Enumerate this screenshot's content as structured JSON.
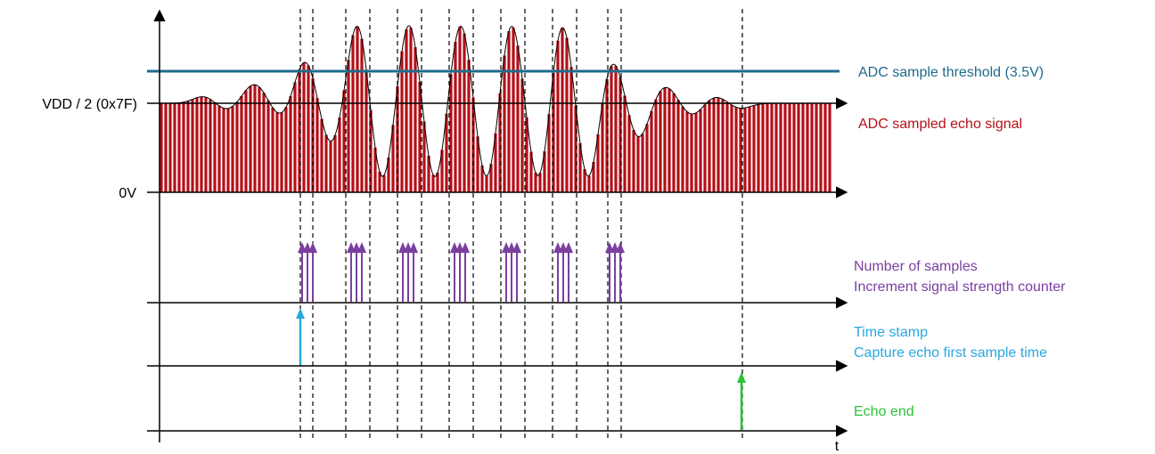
{
  "labels": {
    "vdd_half": "VDD / 2  (0x7F)",
    "zero_v": "0V",
    "time_axis": "t",
    "threshold": "ADC sample threshold (3.5V)",
    "sampled_signal": "ADC sampled echo signal",
    "samples_line1": "Number of samples",
    "samples_line2": "Increment signal strength counter",
    "timestamp_line1": "Time stamp",
    "timestamp_line2": "Capture echo first sample time",
    "echo_end": "Echo end"
  },
  "colors": {
    "axis": "#000000",
    "threshold": "#1f6b8c",
    "signal_bars": "#b50f17",
    "sample_arrows": "#7b3fa0",
    "timestamp_arrow": "#29a8e0",
    "echo_end_arrow": "#2cc23a",
    "dashed_lines": "#000000"
  }
}
